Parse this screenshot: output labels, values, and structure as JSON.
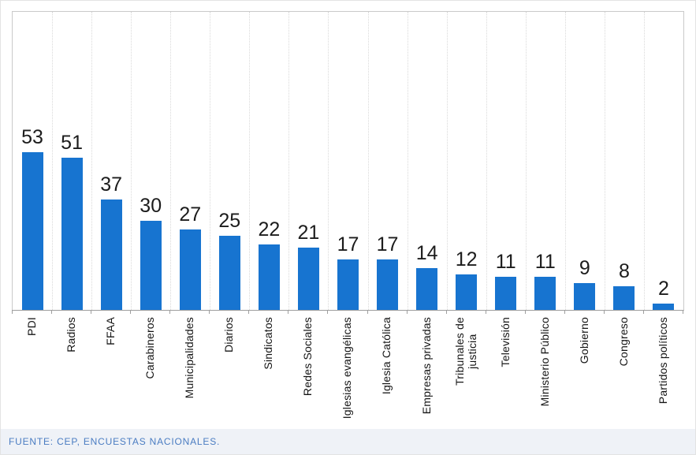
{
  "chart_data": {
    "type": "bar",
    "title": "",
    "xlabel": "",
    "ylabel": "",
    "ylim": [
      0,
      100
    ],
    "grid": "vertical-dotted",
    "legend": "none",
    "data_labels": true,
    "categories": [
      "PDI",
      "Radios",
      "FFAA",
      "Carabineros",
      "Municipalidades",
      "Diarios",
      "Sindicatos",
      "Redes Sociales",
      "Iglesias evangélicas",
      "Iglesia Católica",
      "Empresas privadas",
      "Tribunales de\njusticia",
      "Televisión",
      "Ministerio Público",
      "Gobierno",
      "Congreso",
      "Partidos políticos"
    ],
    "values": [
      53,
      51,
      37,
      30,
      27,
      25,
      22,
      21,
      17,
      17,
      14,
      12,
      11,
      11,
      9,
      8,
      2
    ]
  },
  "footer": {
    "source_text": "FUENTE: CEP, ENCUESTAS NACIONALES."
  },
  "colors": {
    "bar": "#1774D0",
    "grid_line": "#D9D9D9",
    "plot_border": "#C9C9C9",
    "axis_line": "#9E9E9E",
    "value_label": "#1C1C1C",
    "category_label": "#141414",
    "footer_bg": "#EFF2F7",
    "footer_text": "#4A7CC2",
    "card_border": "#E3E3E3"
  }
}
